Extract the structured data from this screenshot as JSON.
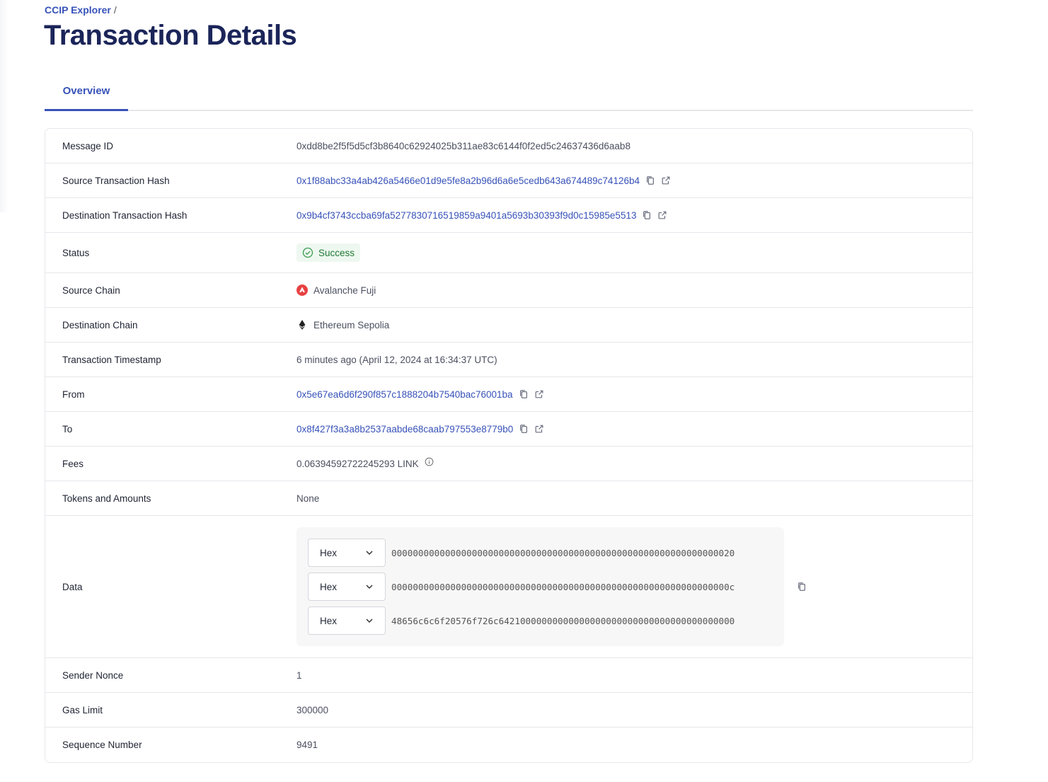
{
  "breadcrumb": {
    "root": "CCIP Explorer",
    "separator": "/"
  },
  "page_title": "Transaction Details",
  "tabs": [
    {
      "label": "Overview",
      "active": true
    }
  ],
  "details": {
    "message_id": {
      "label": "Message ID",
      "value": "0xdd8be2f5f5d5cf3b8640c62924025b311ae83c6144f0f2ed5c24637436d6aab8"
    },
    "source_tx": {
      "label": "Source Transaction Hash",
      "value": "0x1f88abc33a4ab426a5466e01d9e5fe8a2b96d6a6e5cedb643a674489c74126b4"
    },
    "dest_tx": {
      "label": "Destination Transaction Hash",
      "value": "0x9b4cf3743ccba69fa5277830716519859a9401a5693b30393f9d0c15985e5513"
    },
    "status": {
      "label": "Status",
      "value": "Success",
      "color": "#217a35"
    },
    "source_chain": {
      "label": "Source Chain",
      "value": "Avalanche Fuji",
      "icon": "avalanche-icon",
      "color": "#e84142"
    },
    "dest_chain": {
      "label": "Destination Chain",
      "value": "Ethereum Sepolia",
      "icon": "ethereum-icon"
    },
    "timestamp": {
      "label": "Transaction Timestamp",
      "value": "6 minutes ago (April 12, 2024 at 16:34:37 UTC)"
    },
    "from": {
      "label": "From",
      "value": "0x5e67ea6d6f290f857c1888204b7540bac76001ba"
    },
    "to": {
      "label": "To",
      "value": "0x8f427f3a3a8b2537aabde68caab797553e8779b0"
    },
    "fees": {
      "label": "Fees",
      "value": "0.06394592722245293 LINK"
    },
    "tokens": {
      "label": "Tokens and Amounts",
      "value": "None"
    },
    "data": {
      "label": "Data",
      "rows": [
        {
          "format": "Hex",
          "value": "0000000000000000000000000000000000000000000000000000000000000020"
        },
        {
          "format": "Hex",
          "value": "000000000000000000000000000000000000000000000000000000000000000c"
        },
        {
          "format": "Hex",
          "value": "48656c6c6f20576f726c64210000000000000000000000000000000000000000"
        }
      ]
    },
    "nonce": {
      "label": "Sender Nonce",
      "value": "1"
    },
    "gas_limit": {
      "label": "Gas Limit",
      "value": "300000"
    },
    "sequence": {
      "label": "Sequence Number",
      "value": "9491"
    }
  },
  "colors": {
    "accent": "#3752b8",
    "title": "#1b2559"
  }
}
